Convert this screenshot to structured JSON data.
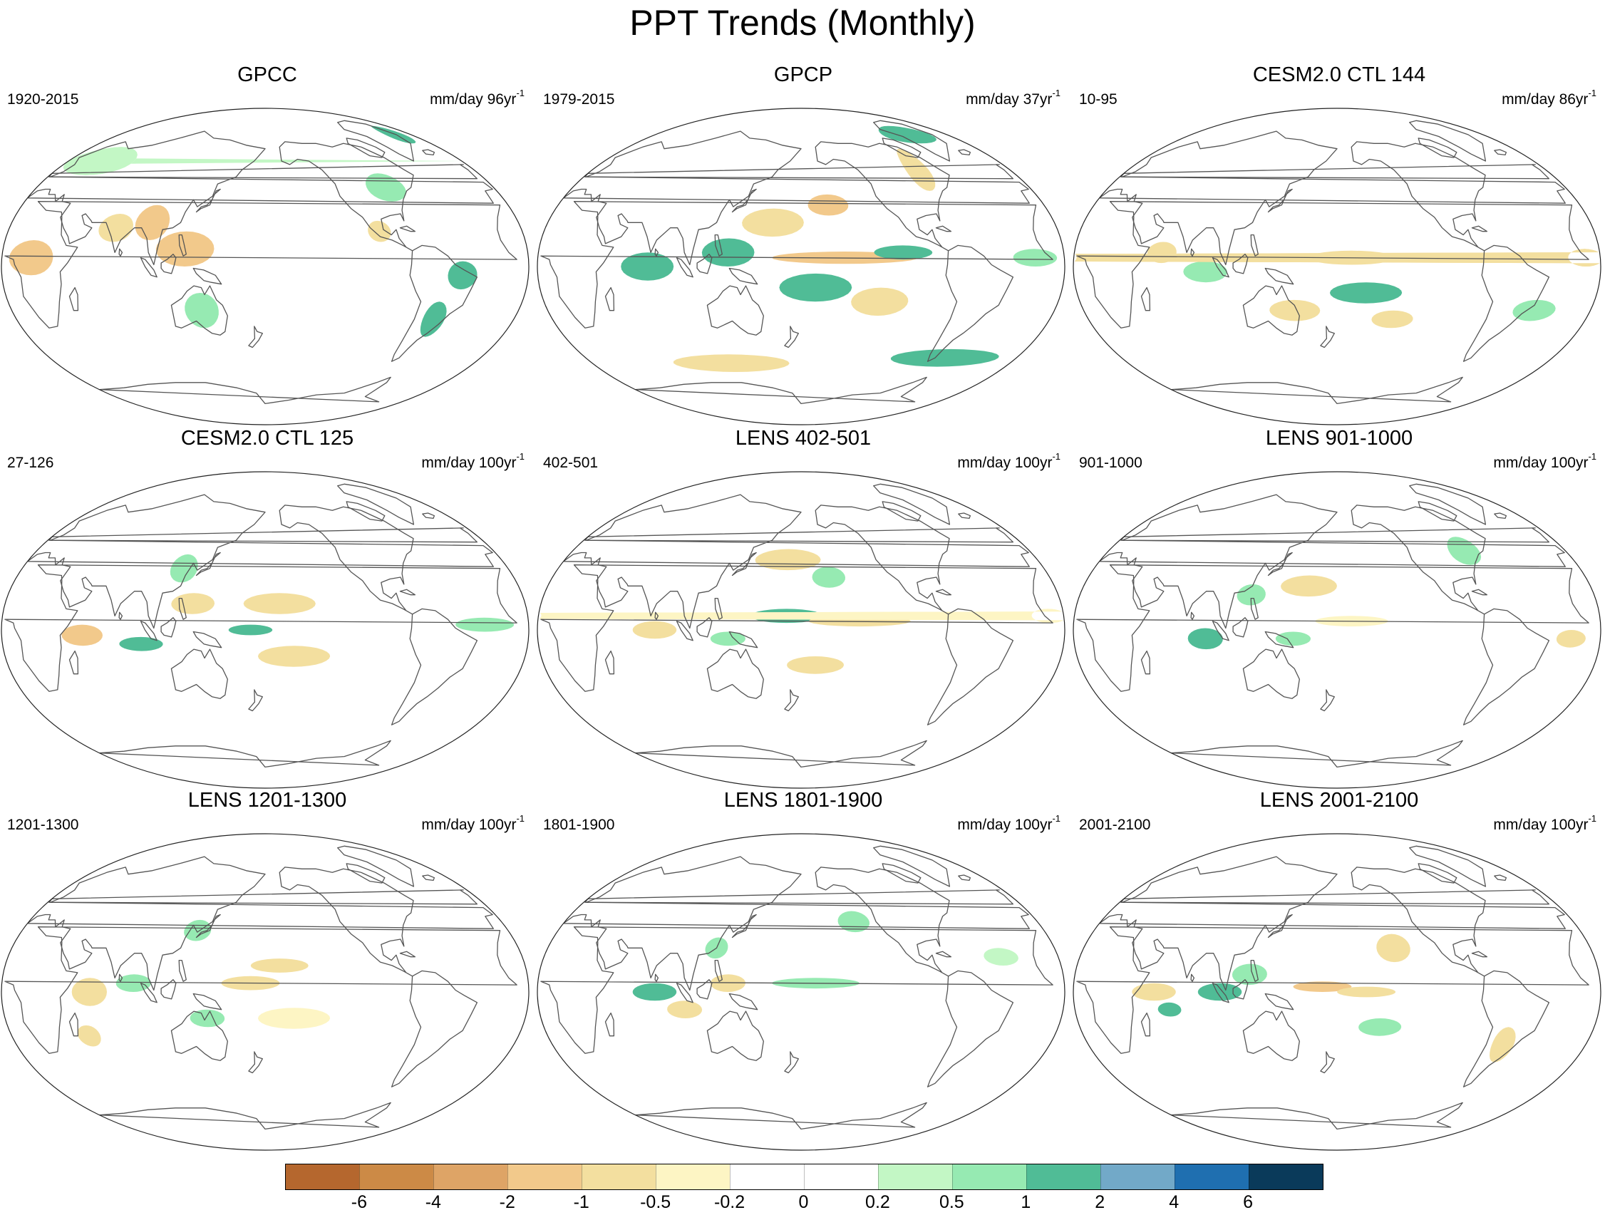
{
  "title": "PPT Trends (Monthly)",
  "panels": [
    {
      "title": "GPCC",
      "period": "1920-2015",
      "units": "mm/day 96yr",
      "units_sup": "-1",
      "trend_regions": [
        {
          "lon": 125,
          "lat": 10,
          "sx": 20,
          "sy": 10,
          "v": -1.5
        },
        {
          "lon": 100,
          "lat": 25,
          "sx": 12,
          "sy": 10,
          "v": -1.2
        },
        {
          "lon": 75,
          "lat": 22,
          "sx": 12,
          "sy": 8,
          "v": -1
        },
        {
          "lon": 20,
          "lat": 5,
          "sx": 15,
          "sy": 10,
          "v": -1.5
        },
        {
          "lon": -45,
          "lat": -5,
          "sx": 10,
          "sy": 8,
          "v": 1.2
        },
        {
          "lon": -58,
          "lat": -30,
          "sx": 8,
          "sy": 10,
          "v": 1.5
        },
        {
          "lon": -85,
          "lat": 45,
          "sx": 15,
          "sy": 8,
          "v": 0.6
        },
        {
          "lon": 30,
          "lat": 60,
          "sx": 30,
          "sy": 8,
          "v": 0.4
        },
        {
          "lon": -20,
          "lat": 75,
          "sx": 12,
          "sy": 5,
          "v": 1.2
        },
        {
          "lon": 135,
          "lat": -25,
          "sx": 12,
          "sy": 10,
          "v": 0.6
        },
        {
          "lon": -100,
          "lat": 20,
          "sx": 8,
          "sy": 6,
          "v": -0.6
        }
      ]
    },
    {
      "title": "GPCP",
      "period": "1979-2015",
      "units": "mm/day 37yr",
      "units_sup": "-1",
      "trend_regions": [
        {
          "lon": 75,
          "lat": 0,
          "sx": 18,
          "sy": 8,
          "v": 1.6
        },
        {
          "lon": 130,
          "lat": 8,
          "sx": 18,
          "sy": 8,
          "v": 1.5
        },
        {
          "lon": -150,
          "lat": 5,
          "sx": 50,
          "sy": 3.5,
          "v": -1.5
        },
        {
          "lon": -110,
          "lat": 8,
          "sx": 20,
          "sy": 4,
          "v": 1.3
        },
        {
          "lon": -170,
          "lat": -12,
          "sx": 25,
          "sy": 8,
          "v": 1
        },
        {
          "lon": -125,
          "lat": -20,
          "sx": 20,
          "sy": 8,
          "v": -1
        },
        {
          "lon": 160,
          "lat": 25,
          "sx": 22,
          "sy": 8,
          "v": -1
        },
        {
          "lon": -160,
          "lat": 35,
          "sx": 15,
          "sy": 6,
          "v": -1.2
        },
        {
          "lon": -80,
          "lat": 55,
          "sx": 10,
          "sy": 12,
          "v": -1
        },
        {
          "lon": -20,
          "lat": 5,
          "sx": 15,
          "sy": 5,
          "v": 0.8
        },
        {
          "lon": -60,
          "lat": -52,
          "sx": 45,
          "sy": 5,
          "v": 1.3
        },
        {
          "lon": 120,
          "lat": -55,
          "sx": 50,
          "sy": 5,
          "v": -0.8
        },
        {
          "lon": -50,
          "lat": 75,
          "sx": 30,
          "sy": 5,
          "v": 1.2
        }
      ]
    },
    {
      "title": "CESM2.0 CTL 144",
      "period": "10-95",
      "units": "mm/day 86yr",
      "units_sup": "-1",
      "trend_regions": [
        {
          "lon": -170,
          "lat": 5,
          "sx": 30,
          "sy": 4,
          "v": -1
        },
        {
          "lon": -160,
          "lat": -15,
          "sx": 25,
          "sy": 6,
          "v": 1
        },
        {
          "lon": 150,
          "lat": -25,
          "sx": 18,
          "sy": 6,
          "v": -0.8
        },
        {
          "lon": 90,
          "lat": -3,
          "sx": 15,
          "sy": 6,
          "v": 0.7
        },
        {
          "lon": 60,
          "lat": 8,
          "sx": 10,
          "sy": 6,
          "v": -0.7
        },
        {
          "lon": -140,
          "lat": -30,
          "sx": 15,
          "sy": 5,
          "v": -0.8
        },
        {
          "lon": -10,
          "lat": 5,
          "sx": 12,
          "sy": 5,
          "v": -0.6
        },
        {
          "lon": -40,
          "lat": -25,
          "sx": 15,
          "sy": 6,
          "v": 0.5
        }
      ]
    },
    {
      "title": "CESM2.0 CTL 125",
      "period": "27-126",
      "units": "mm/day 100yr",
      "units_sup": "-1",
      "trend_regions": [
        {
          "lon": 55,
          "lat": -3,
          "sx": 14,
          "sy": 6,
          "v": -1.5
        },
        {
          "lon": 95,
          "lat": -8,
          "sx": 15,
          "sy": 4,
          "v": 1.3
        },
        {
          "lon": 170,
          "lat": 0,
          "sx": 15,
          "sy": 3,
          "v": 1.3
        },
        {
          "lon": -170,
          "lat": 15,
          "sx": 25,
          "sy": 6,
          "v": -1
        },
        {
          "lon": -160,
          "lat": -15,
          "sx": 25,
          "sy": 6,
          "v": -0.8
        },
        {
          "lon": 120,
          "lat": 35,
          "sx": 10,
          "sy": 8,
          "v": 0.7
        },
        {
          "lon": -30,
          "lat": 3,
          "sx": 20,
          "sy": 4,
          "v": 0.6
        },
        {
          "lon": 130,
          "lat": 15,
          "sx": 15,
          "sy": 6,
          "v": -0.6
        }
      ]
    },
    {
      "title": "LENS 402-501",
      "period": "402-501",
      "units": "mm/day 100yr",
      "units_sup": "-1",
      "trend_regions": [
        {
          "lon": 170,
          "lat": 8,
          "sx": 25,
          "sy": 4,
          "v": 1
        },
        {
          "lon": -140,
          "lat": 5,
          "sx": 35,
          "sy": 3,
          "v": -1
        },
        {
          "lon": 170,
          "lat": 40,
          "sx": 25,
          "sy": 6,
          "v": -0.6
        },
        {
          "lon": -160,
          "lat": 30,
          "sx": 12,
          "sy": 6,
          "v": 0.6
        },
        {
          "lon": 130,
          "lat": -5,
          "sx": 12,
          "sy": 4,
          "v": 0.8
        },
        {
          "lon": 80,
          "lat": 0,
          "sx": 15,
          "sy": 5,
          "v": -0.8
        },
        {
          "lon": -170,
          "lat": -20,
          "sx": 20,
          "sy": 5,
          "v": -0.6
        },
        {
          "lon": -10,
          "lat": 8,
          "sx": 12,
          "sy": 4,
          "v": -0.5
        }
      ]
    },
    {
      "title": "LENS 901-1000",
      "period": "901-1000",
      "units": "mm/day 100yr",
      "units_sup": "-1",
      "trend_regions": [
        {
          "lon": 90,
          "lat": -5,
          "sx": 12,
          "sy": 6,
          "v": 1
        },
        {
          "lon": 150,
          "lat": -5,
          "sx": 12,
          "sy": 4,
          "v": 0.8
        },
        {
          "lon": -20,
          "lat": -5,
          "sx": 10,
          "sy": 5,
          "v": -1
        },
        {
          "lon": 160,
          "lat": 25,
          "sx": 20,
          "sy": 6,
          "v": -0.6
        },
        {
          "lon": -170,
          "lat": 5,
          "sx": 25,
          "sy": 3,
          "v": -0.5
        },
        {
          "lon": -80,
          "lat": 45,
          "sx": 12,
          "sy": 8,
          "v": 0.5
        },
        {
          "lon": 120,
          "lat": 20,
          "sx": 10,
          "sy": 6,
          "v": 0.6
        }
      ]
    },
    {
      "title": "LENS 1201-1300",
      "period": "1201-1300",
      "units": "mm/day 100yr",
      "units_sup": "-1",
      "trend_regions": [
        {
          "lon": 60,
          "lat": 0,
          "sx": 12,
          "sy": 8,
          "v": -1
        },
        {
          "lon": 55,
          "lat": -25,
          "sx": 8,
          "sy": 6,
          "v": -1
        },
        {
          "lon": 90,
          "lat": 5,
          "sx": 12,
          "sy": 5,
          "v": 0.7
        },
        {
          "lon": 170,
          "lat": 5,
          "sx": 20,
          "sy": 4,
          "v": -0.8
        },
        {
          "lon": -170,
          "lat": 15,
          "sx": 20,
          "sy": 4,
          "v": -0.6
        },
        {
          "lon": 140,
          "lat": -15,
          "sx": 12,
          "sy": 5,
          "v": 0.6
        },
        {
          "lon": -160,
          "lat": -15,
          "sx": 25,
          "sy": 6,
          "v": -0.5
        },
        {
          "lon": 130,
          "lat": 35,
          "sx": 10,
          "sy": 6,
          "v": 0.5
        }
      ]
    },
    {
      "title": "LENS 1801-1900",
      "period": "1801-1900",
      "units": "mm/day 100yr",
      "units_sup": "-1",
      "trend_regions": [
        {
          "lon": 80,
          "lat": 0,
          "sx": 15,
          "sy": 5,
          "v": 1
        },
        {
          "lon": 100,
          "lat": -10,
          "sx": 12,
          "sy": 5,
          "v": -1
        },
        {
          "lon": 130,
          "lat": 5,
          "sx": 12,
          "sy": 5,
          "v": -0.8
        },
        {
          "lon": -170,
          "lat": 5,
          "sx": 30,
          "sy": 3,
          "v": 0.5
        },
        {
          "lon": -140,
          "lat": 40,
          "sx": 12,
          "sy": 6,
          "v": 0.5
        },
        {
          "lon": 120,
          "lat": 25,
          "sx": 8,
          "sy": 6,
          "v": 0.7
        },
        {
          "lon": -40,
          "lat": 20,
          "sx": 12,
          "sy": 5,
          "v": 0.4
        }
      ]
    },
    {
      "title": "LENS 2001-2100",
      "period": "2001-2100",
      "units": "mm/day 100yr",
      "units_sup": "-1",
      "trend_regions": [
        {
          "lon": 55,
          "lat": 0,
          "sx": 15,
          "sy": 5,
          "v": -1
        },
        {
          "lon": 65,
          "lat": -10,
          "sx": 8,
          "sy": 4,
          "v": 1.8
        },
        {
          "lon": 100,
          "lat": 0,
          "sx": 15,
          "sy": 5,
          "v": 1
        },
        {
          "lon": 120,
          "lat": 10,
          "sx": 12,
          "sy": 6,
          "v": 0.8
        },
        {
          "lon": 170,
          "lat": 3,
          "sx": 20,
          "sy": 3,
          "v": -1.2
        },
        {
          "lon": -160,
          "lat": 0,
          "sx": 20,
          "sy": 3,
          "v": -0.8
        },
        {
          "lon": -140,
          "lat": 25,
          "sx": 12,
          "sy": 8,
          "v": -0.6
        },
        {
          "lon": -60,
          "lat": -30,
          "sx": 8,
          "sy": 10,
          "v": -0.8
        },
        {
          "lon": -150,
          "lat": -20,
          "sx": 15,
          "sy": 5,
          "v": 0.5
        }
      ]
    }
  ],
  "colorbar": {
    "colors": [
      "#b5672e",
      "#cc8a46",
      "#dea466",
      "#f2c98b",
      "#f3df9f",
      "#fdf5c4",
      "#ffffff",
      "#ffffff",
      "#c3f7c5",
      "#96eab2",
      "#50bc96",
      "#72a9c8",
      "#1f6fb0",
      "#0a3a5a"
    ],
    "labels": [
      "-6",
      "-4",
      "-2",
      "-1",
      "-0.5",
      "-0.2",
      "0",
      "0.2",
      "0.5",
      "1",
      "2",
      "4",
      "6"
    ],
    "boundaries": [
      -6,
      -4,
      -2,
      -1,
      -0.5,
      -0.2,
      0,
      0.2,
      0.5,
      1,
      2,
      4,
      6
    ]
  }
}
